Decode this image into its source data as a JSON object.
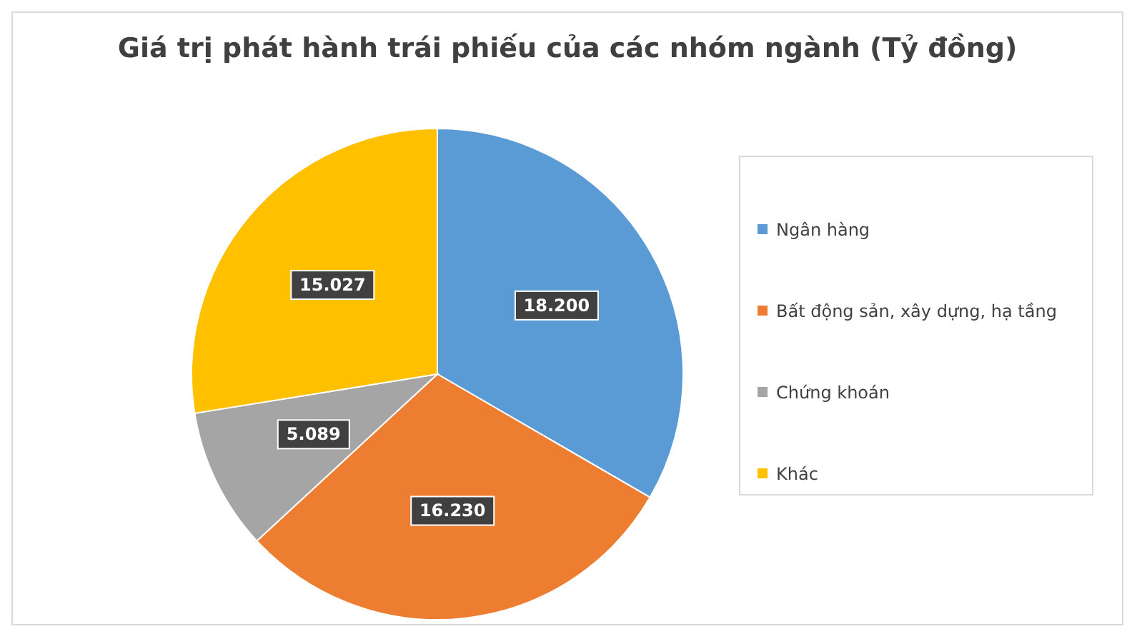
{
  "chart_data": {
    "type": "pie",
    "title": "Giá trị phát hành trái phiếu của các nhóm ngành (Tỷ đồng)",
    "categories": [
      "Ngân hàng",
      "Bất động sản, xây dựng, hạ tầng",
      "Chứng khoán",
      "Khác"
    ],
    "values": [
      18200,
      16230,
      5089,
      15027
    ],
    "value_labels": [
      "18.200",
      "16.230",
      "5.089",
      "15.027"
    ],
    "colors": [
      "#5b9bd5",
      "#ed7d31",
      "#a5a5a5",
      "#ffc000"
    ],
    "legend": "right"
  }
}
